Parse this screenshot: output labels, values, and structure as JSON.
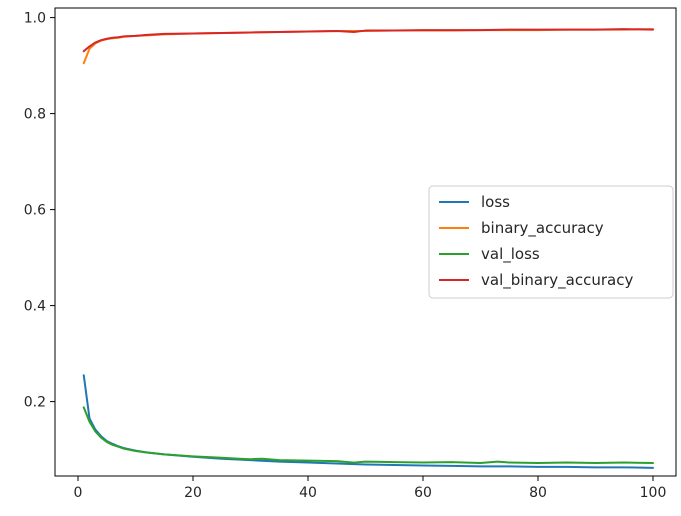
{
  "chart_data": {
    "type": "line",
    "title": "",
    "xlabel": "",
    "ylabel": "",
    "xlim": [
      -4,
      104
    ],
    "ylim": [
      0.045,
      1.02
    ],
    "xticks": [
      0,
      20,
      40,
      60,
      80,
      100
    ],
    "yticks": [
      0.2,
      0.4,
      0.6,
      0.8,
      1.0
    ],
    "xtick_labels": [
      "0",
      "20",
      "40",
      "60",
      "80",
      "100"
    ],
    "ytick_labels": [
      "0.2",
      "0.4",
      "0.6",
      "0.8",
      "1.0"
    ],
    "grid": false,
    "legend_position": "center-right",
    "series": [
      {
        "name": "loss",
        "color": "#1f77b4",
        "points": [
          [
            1,
            0.255
          ],
          [
            2,
            0.165
          ],
          [
            3,
            0.142
          ],
          [
            4,
            0.128
          ],
          [
            5,
            0.118
          ],
          [
            6,
            0.112
          ],
          [
            7,
            0.107
          ],
          [
            8,
            0.103
          ],
          [
            10,
            0.098
          ],
          [
            12,
            0.094
          ],
          [
            15,
            0.09
          ],
          [
            20,
            0.085
          ],
          [
            25,
            0.081
          ],
          [
            30,
            0.078
          ],
          [
            35,
            0.075
          ],
          [
            40,
            0.073
          ],
          [
            45,
            0.071
          ],
          [
            50,
            0.069
          ],
          [
            55,
            0.068
          ],
          [
            60,
            0.067
          ],
          [
            65,
            0.066
          ],
          [
            70,
            0.065
          ],
          [
            75,
            0.065
          ],
          [
            80,
            0.064
          ],
          [
            85,
            0.064
          ],
          [
            90,
            0.063
          ],
          [
            95,
            0.063
          ],
          [
            100,
            0.062
          ]
        ]
      },
      {
        "name": "binary_accuracy",
        "color": "#ff7f0e",
        "points": [
          [
            1,
            0.905
          ],
          [
            2,
            0.935
          ],
          [
            3,
            0.946
          ],
          [
            4,
            0.952
          ],
          [
            5,
            0.955
          ],
          [
            6,
            0.957
          ],
          [
            7,
            0.958
          ],
          [
            8,
            0.96
          ],
          [
            10,
            0.962
          ],
          [
            12,
            0.963
          ],
          [
            15,
            0.965
          ],
          [
            20,
            0.967
          ],
          [
            25,
            0.968
          ],
          [
            30,
            0.969
          ],
          [
            35,
            0.97
          ],
          [
            40,
            0.971
          ],
          [
            45,
            0.972
          ],
          [
            50,
            0.972
          ],
          [
            55,
            0.973
          ],
          [
            60,
            0.973
          ],
          [
            65,
            0.973
          ],
          [
            70,
            0.974
          ],
          [
            75,
            0.974
          ],
          [
            80,
            0.974
          ],
          [
            85,
            0.975
          ],
          [
            90,
            0.975
          ],
          [
            95,
            0.975
          ],
          [
            100,
            0.976
          ]
        ]
      },
      {
        "name": "val_loss",
        "color": "#2ca02c",
        "points": [
          [
            1,
            0.188
          ],
          [
            2,
            0.158
          ],
          [
            3,
            0.138
          ],
          [
            4,
            0.125
          ],
          [
            5,
            0.116
          ],
          [
            6,
            0.11
          ],
          [
            7,
            0.106
          ],
          [
            8,
            0.102
          ],
          [
            10,
            0.097
          ],
          [
            12,
            0.094
          ],
          [
            15,
            0.09
          ],
          [
            20,
            0.086
          ],
          [
            25,
            0.083
          ],
          [
            28,
            0.081
          ],
          [
            30,
            0.08
          ],
          [
            32,
            0.081
          ],
          [
            35,
            0.078
          ],
          [
            40,
            0.077
          ],
          [
            45,
            0.076
          ],
          [
            48,
            0.073
          ],
          [
            50,
            0.075
          ],
          [
            55,
            0.074
          ],
          [
            60,
            0.073
          ],
          [
            65,
            0.074
          ],
          [
            70,
            0.072
          ],
          [
            73,
            0.075
          ],
          [
            75,
            0.073
          ],
          [
            80,
            0.072
          ],
          [
            85,
            0.073
          ],
          [
            90,
            0.072
          ],
          [
            95,
            0.073
          ],
          [
            100,
            0.072
          ]
        ]
      },
      {
        "name": "val_binary_accuracy",
        "color": "#d62728",
        "points": [
          [
            1,
            0.93
          ],
          [
            2,
            0.94
          ],
          [
            3,
            0.948
          ],
          [
            4,
            0.953
          ],
          [
            5,
            0.956
          ],
          [
            6,
            0.958
          ],
          [
            7,
            0.959
          ],
          [
            8,
            0.961
          ],
          [
            10,
            0.962
          ],
          [
            12,
            0.964
          ],
          [
            15,
            0.966
          ],
          [
            20,
            0.967
          ],
          [
            25,
            0.968
          ],
          [
            30,
            0.969
          ],
          [
            35,
            0.97
          ],
          [
            40,
            0.971
          ],
          [
            45,
            0.972
          ],
          [
            48,
            0.97
          ],
          [
            50,
            0.973
          ],
          [
            55,
            0.973
          ],
          [
            60,
            0.974
          ],
          [
            65,
            0.974
          ],
          [
            70,
            0.974
          ],
          [
            75,
            0.975
          ],
          [
            80,
            0.975
          ],
          [
            85,
            0.975
          ],
          [
            90,
            0.975
          ],
          [
            95,
            0.976
          ],
          [
            100,
            0.975
          ]
        ]
      }
    ]
  }
}
